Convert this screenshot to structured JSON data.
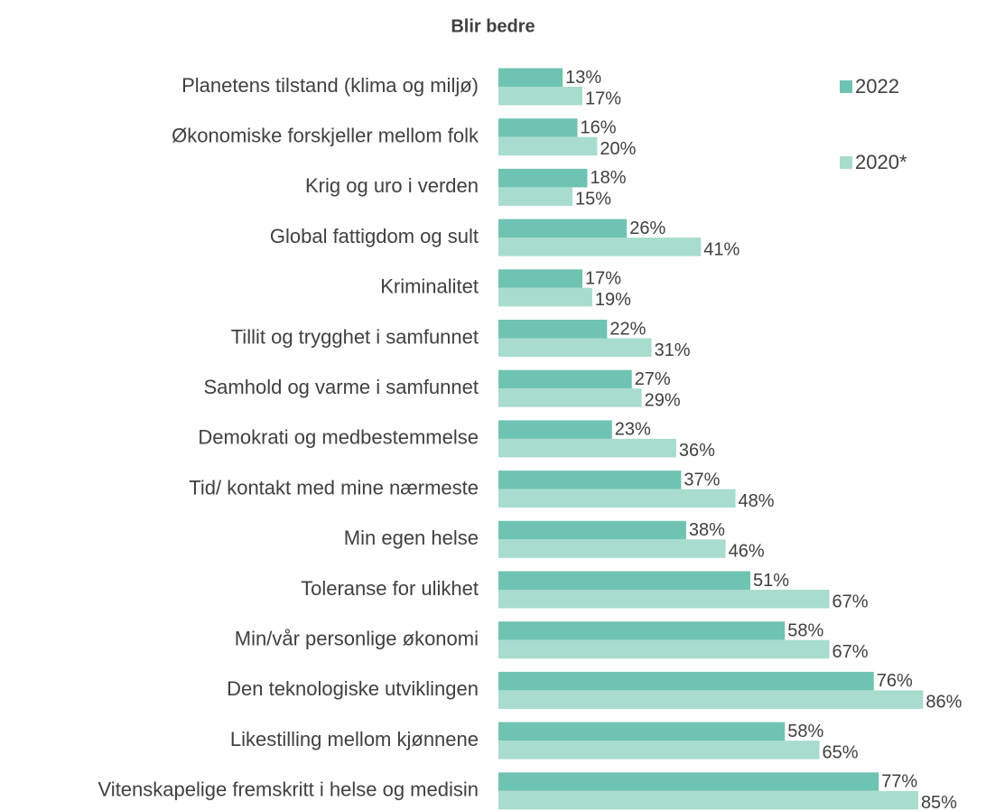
{
  "chart_data": {
    "type": "bar",
    "orientation": "horizontal",
    "title": "Blir bedre",
    "categories": [
      "Planetens tilstand (klima og miljø)",
      "Økonomiske forskjeller mellom folk",
      "Krig og uro i verden",
      "Global fattigdom og sult",
      "Kriminalitet",
      "Tillit og trygghet i samfunnet",
      "Samhold og varme i samfunnet",
      "Demokrati og medbestemmelse",
      "Tid/ kontakt med mine nærmeste",
      "Min egen helse",
      "Toleranse for ulikhet",
      "Min/vår personlige økonomi",
      "Den teknologiske utviklingen",
      "Likestilling mellom kjønnene",
      "Vitenskapelige fremskritt i helse og medisin"
    ],
    "series": [
      {
        "name": "2022",
        "color": "#6fc3b2",
        "values": [
          13,
          16,
          18,
          26,
          17,
          22,
          27,
          23,
          37,
          38,
          51,
          58,
          76,
          58,
          77
        ],
        "value_labels": [
          "13%",
          "16%",
          "18%",
          "26%",
          "17%",
          "22%",
          "27%",
          "23%",
          "37%",
          "38%",
          "51%",
          "58%",
          "76%",
          "58%",
          "77%"
        ]
      },
      {
        "name": "2020*",
        "color": "#a8dccf",
        "values": [
          17,
          20,
          15,
          41,
          19,
          31,
          29,
          36,
          48,
          46,
          67,
          67,
          86,
          65,
          85
        ],
        "value_labels": [
          "17%",
          "20%",
          "15%",
          "41%",
          "19%",
          "31%",
          "29%",
          "36%",
          "48%",
          "46%",
          "67%",
          "67%",
          "86%",
          "65%",
          "85%"
        ]
      }
    ],
    "legend": "top-right"
  }
}
